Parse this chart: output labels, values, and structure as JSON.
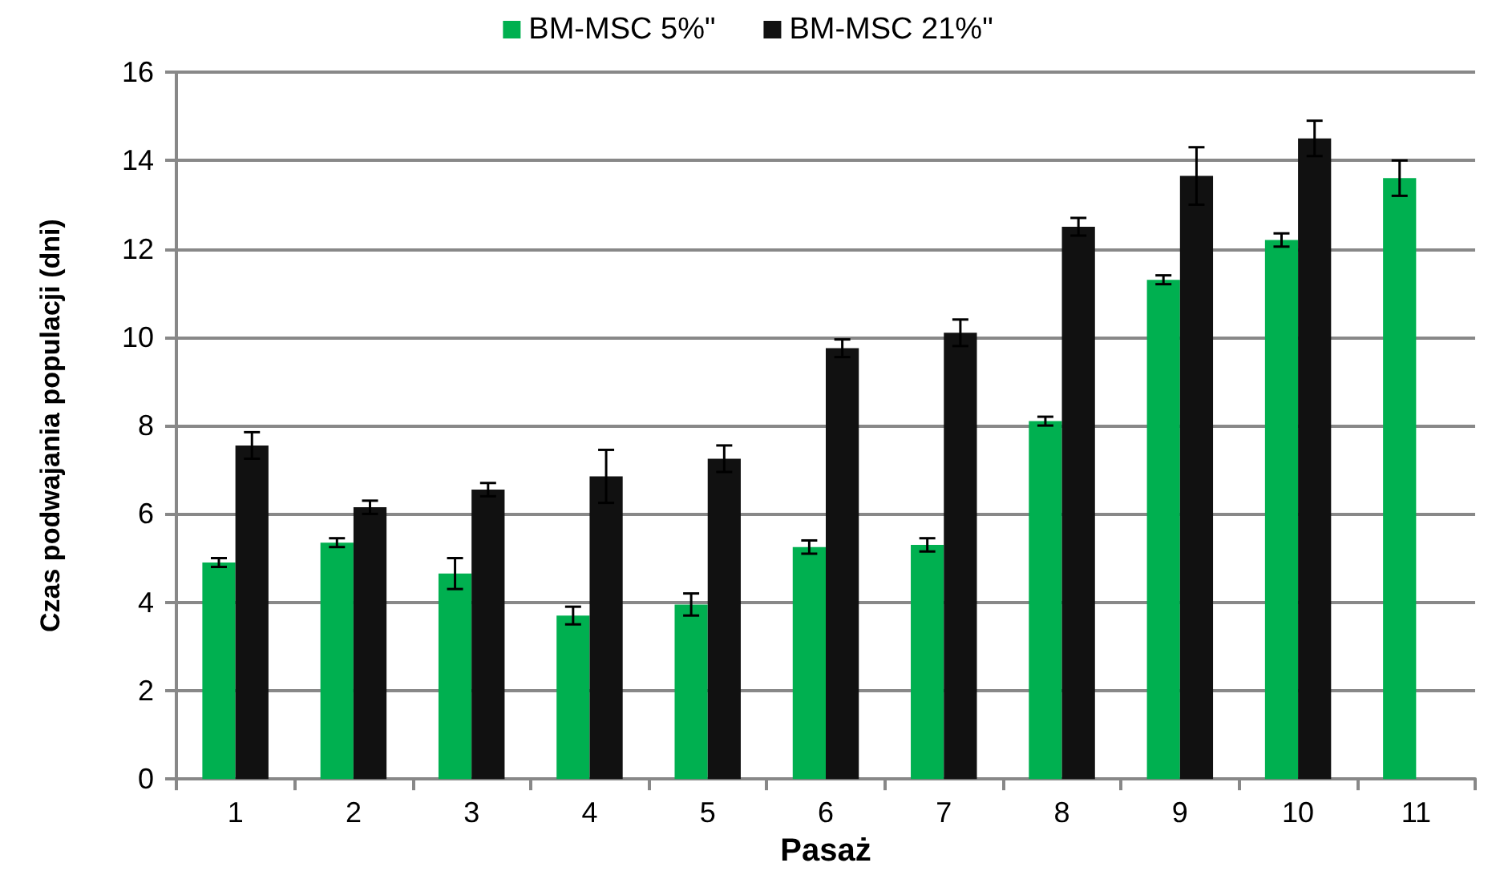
{
  "chart_data": {
    "type": "bar",
    "xlabel": "Pasaż",
    "ylabel": "Czas podwajania populacji (dni)",
    "categories": [
      "1",
      "2",
      "3",
      "4",
      "5",
      "6",
      "7",
      "8",
      "9",
      "10",
      "11"
    ],
    "series": [
      {
        "name": "BM-MSC 5%\"",
        "color": "#00b050",
        "values": [
          4.9,
          5.35,
          4.65,
          3.7,
          3.95,
          5.25,
          5.3,
          8.1,
          11.3,
          12.2,
          13.6
        ],
        "errors": [
          0.1,
          0.1,
          0.35,
          0.2,
          0.25,
          0.15,
          0.15,
          0.1,
          0.1,
          0.15,
          0.4
        ]
      },
      {
        "name": "BM-MSC 21%\"",
        "color": "#111111",
        "values": [
          7.55,
          6.15,
          6.55,
          6.85,
          7.25,
          9.75,
          10.1,
          12.5,
          13.65,
          14.5,
          null
        ],
        "errors": [
          0.3,
          0.15,
          0.15,
          0.6,
          0.3,
          0.2,
          0.3,
          0.2,
          0.65,
          0.4,
          null
        ]
      }
    ],
    "ylim": [
      0,
      16
    ],
    "yticks": [
      0,
      2,
      4,
      6,
      8,
      10,
      12,
      14,
      16
    ],
    "grid": "y",
    "legend": "top"
  }
}
